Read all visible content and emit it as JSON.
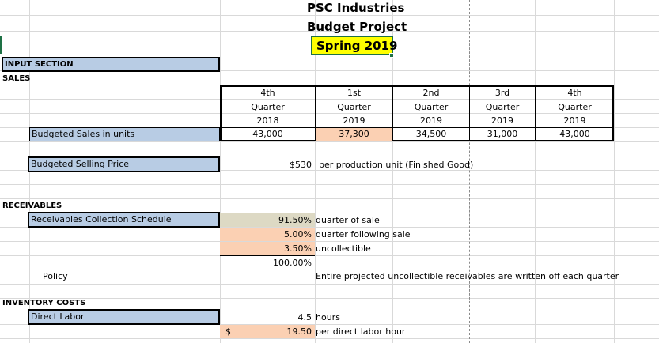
{
  "header": {
    "company": "PSC Industries",
    "project": "Budget Project",
    "term": "Spring 2019"
  },
  "input_section": {
    "label": "INPUT SECTION"
  },
  "sales": {
    "label": "SALES",
    "quarters": [
      {
        "q": "4th",
        "word": "Quarter",
        "year": "2018",
        "units": "43,000"
      },
      {
        "q": "1st",
        "word": "Quarter",
        "year": "2019",
        "units": "37,300"
      },
      {
        "q": "2nd",
        "word": "Quarter",
        "year": "2019",
        "units": "34,500"
      },
      {
        "q": "3rd",
        "word": "Quarter",
        "year": "2019",
        "units": "31,000"
      },
      {
        "q": "4th",
        "word": "Quarter",
        "year": "2019",
        "units": "43,000"
      }
    ],
    "units_label": "Budgeted Sales in units",
    "price_label": "Budgeted Selling Price",
    "price_value": "$530",
    "price_note": "per production unit (Finished Good)"
  },
  "receivables": {
    "label": "RECEIVABLES",
    "schedule_label": "Receivables Collection Schedule",
    "rows": [
      {
        "pct": "91.50%",
        "desc": "quarter of sale"
      },
      {
        "pct": "5.00%",
        "desc": "quarter following sale"
      },
      {
        "pct": "3.50%",
        "desc": "uncollectible"
      }
    ],
    "total": "100.00%",
    "policy_label": "Policy",
    "policy_text": "Entire projected uncollectible receivables are written off each quarter"
  },
  "inventory": {
    "label": "INVENTORY COSTS",
    "direct_labor_label": "Direct Labor",
    "hours_value": "4.5",
    "hours_unit": "hours",
    "currency": "$",
    "rate_value": "19.50",
    "rate_unit": "per direct labor hour"
  },
  "colors": {
    "label_fill": "#b8cce4",
    "input_fill": "#fbd0b3",
    "calc_fill": "#ddd9c4",
    "term_fill": "#ffff00",
    "gridline": "#d9d9d9"
  }
}
